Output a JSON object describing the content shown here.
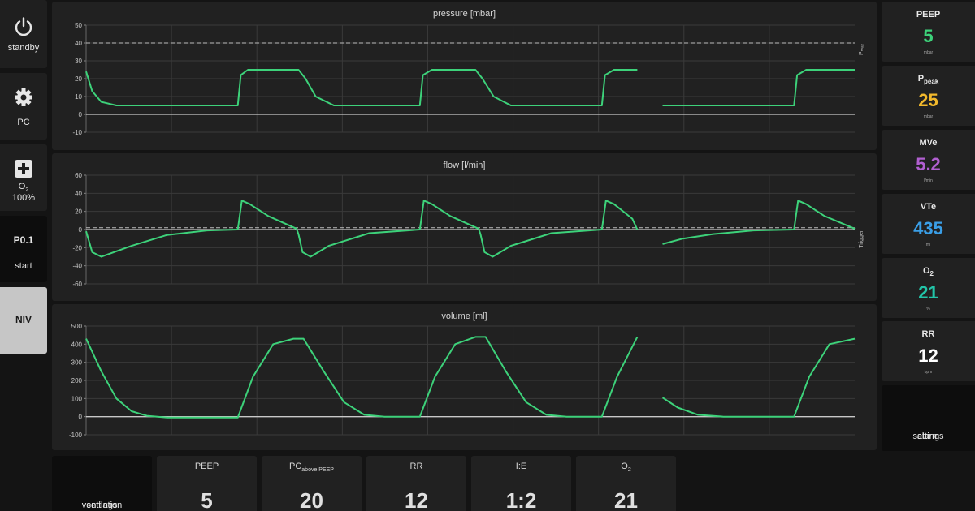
{
  "nav": {
    "standby_label": "standby",
    "mode_label": "PC",
    "o2_label": "O",
    "o2_sub": "2",
    "o2_value": "100%",
    "p01_title": "P0.1",
    "p01_label": "start",
    "niv_label": "NIV"
  },
  "charts": {
    "pressure": {
      "title": "pressure [mbar]",
      "side_label": "Pₘₐₓ",
      "yticks": [
        "50",
        "40",
        "30",
        "20",
        "10",
        "0",
        "-10"
      ],
      "ylim": [
        -10,
        50
      ],
      "threshold": 40
    },
    "flow": {
      "title": "flow [l/min]",
      "side_label": "Trigger",
      "yticks": [
        "60",
        "40",
        "20",
        "0",
        "-20",
        "-40",
        "-60"
      ],
      "ylim": [
        -60,
        60
      ],
      "threshold": 2
    },
    "volume": {
      "title": "volume [ml]",
      "yticks": [
        "500",
        "400",
        "300",
        "200",
        "100",
        "0",
        "-100"
      ],
      "ylim": [
        -100,
        500
      ]
    }
  },
  "chart_data": [
    {
      "type": "line",
      "title": "pressure [mbar]",
      "ylim": [
        -10,
        50
      ],
      "grid": true,
      "reference_line": 40,
      "series": [
        {
          "x": [
            0,
            0.06,
            0.15,
            0.3,
            1.5,
            1.53,
            1.6,
            1.9,
            2.1,
            2.17,
            2.27,
            2.45,
            3.3,
            3.33,
            3.42,
            3.75,
            3.85,
            3.92,
            4.03,
            4.2,
            5.1,
            5.13,
            5.22,
            5.45
          ],
          "y": [
            24,
            13,
            7,
            5,
            5,
            22,
            25,
            25,
            25,
            20,
            10,
            5,
            5,
            22,
            25,
            25,
            25,
            20,
            10,
            5,
            5,
            22,
            25,
            25
          ]
        },
        {
          "x": [
            5.7,
            7.0,
            7.03,
            7.12,
            7.6
          ],
          "y": [
            5,
            5,
            22,
            25,
            25
          ]
        }
      ]
    },
    {
      "type": "line",
      "title": "flow [l/min]",
      "ylim": [
        -60,
        60
      ],
      "grid": true,
      "reference_line": 2,
      "series": [
        {
          "x": [
            0,
            0.06,
            0.15,
            0.45,
            0.8,
            1.2,
            1.5,
            1.54,
            1.62,
            1.8,
            2.08,
            2.1,
            2.14,
            2.22,
            2.4,
            2.8,
            3.3,
            3.34,
            3.42,
            3.6,
            3.88,
            3.9,
            3.94,
            4.02,
            4.2,
            4.6,
            5.1,
            5.14,
            5.22,
            5.4,
            5.45
          ],
          "y": [
            -2,
            -25,
            -30,
            -18,
            -6,
            -1,
            0,
            32,
            28,
            15,
            1,
            -5,
            -25,
            -30,
            -18,
            -4,
            0,
            32,
            28,
            15,
            1,
            -5,
            -25,
            -30,
            -18,
            -4,
            0,
            32,
            28,
            12,
            0
          ]
        },
        {
          "x": [
            5.7,
            5.9,
            6.2,
            6.6,
            7.0,
            7.04,
            7.12,
            7.3,
            7.6
          ],
          "y": [
            -16,
            -10,
            -5,
            -1,
            0,
            32,
            28,
            15,
            1
          ]
        }
      ]
    },
    {
      "type": "line",
      "title": "volume [ml]",
      "ylim": [
        -100,
        500
      ],
      "grid": true,
      "series": [
        {
          "x": [
            0,
            0.15,
            0.3,
            0.45,
            0.6,
            0.8,
            1.0,
            1.5,
            1.65,
            1.85,
            2.05,
            2.15,
            2.35,
            2.55,
            2.75,
            2.95,
            3.3,
            3.45,
            3.65,
            3.85,
            3.95,
            4.15,
            4.35,
            4.55,
            4.75,
            5.1,
            5.25,
            5.45
          ],
          "y": [
            430,
            250,
            100,
            30,
            5,
            -5,
            -5,
            -5,
            220,
            400,
            430,
            430,
            250,
            80,
            10,
            0,
            0,
            220,
            400,
            440,
            440,
            250,
            80,
            10,
            0,
            0,
            220,
            440
          ]
        },
        {
          "x": [
            5.7,
            5.85,
            6.05,
            6.3,
            7.0,
            7.15,
            7.35,
            7.6
          ],
          "y": [
            105,
            50,
            10,
            0,
            0,
            220,
            400,
            430
          ]
        }
      ]
    }
  ],
  "measurements": [
    {
      "name": "PEEP",
      "sub": "",
      "value": "5",
      "unit": "mbar",
      "color": "#3dd27a"
    },
    {
      "name": "P",
      "sub": "peak",
      "value": "25",
      "unit": "mbar",
      "color": "#f2b92c"
    },
    {
      "name": "MVe",
      "sub": "",
      "value": "5.2",
      "unit": "l/min",
      "color": "#b15fd0"
    },
    {
      "name": "VTe",
      "sub": "",
      "value": "435",
      "unit": "ml",
      "color": "#3a9ee6"
    },
    {
      "name": "O",
      "sub": "2",
      "value": "21",
      "unit": "%",
      "color": "#22c4a8"
    },
    {
      "name": "RR",
      "sub": "",
      "value": "12",
      "unit": "bpm",
      "color": "#ffffff"
    }
  ],
  "alarm_settings": {
    "line1": "alarm",
    "line2": "settings"
  },
  "ventilation_settings": {
    "line1": "ventilation",
    "line2": "settings"
  },
  "settings": [
    {
      "name": "PEEP",
      "sub": "",
      "value": "5"
    },
    {
      "name": "PC",
      "sub": "above PEEP",
      "value": "20"
    },
    {
      "name": "RR",
      "sub": "",
      "value": "12"
    },
    {
      "name": "I:E",
      "sub": "",
      "value": "1:2"
    },
    {
      "name": "O",
      "sub": "2",
      "value": "21"
    }
  ],
  "colors": {
    "wave": "#3dd27a",
    "grid": "#3a3a3a",
    "zero_line": "#c8c8c8",
    "threshold": "#bdbdbd"
  }
}
